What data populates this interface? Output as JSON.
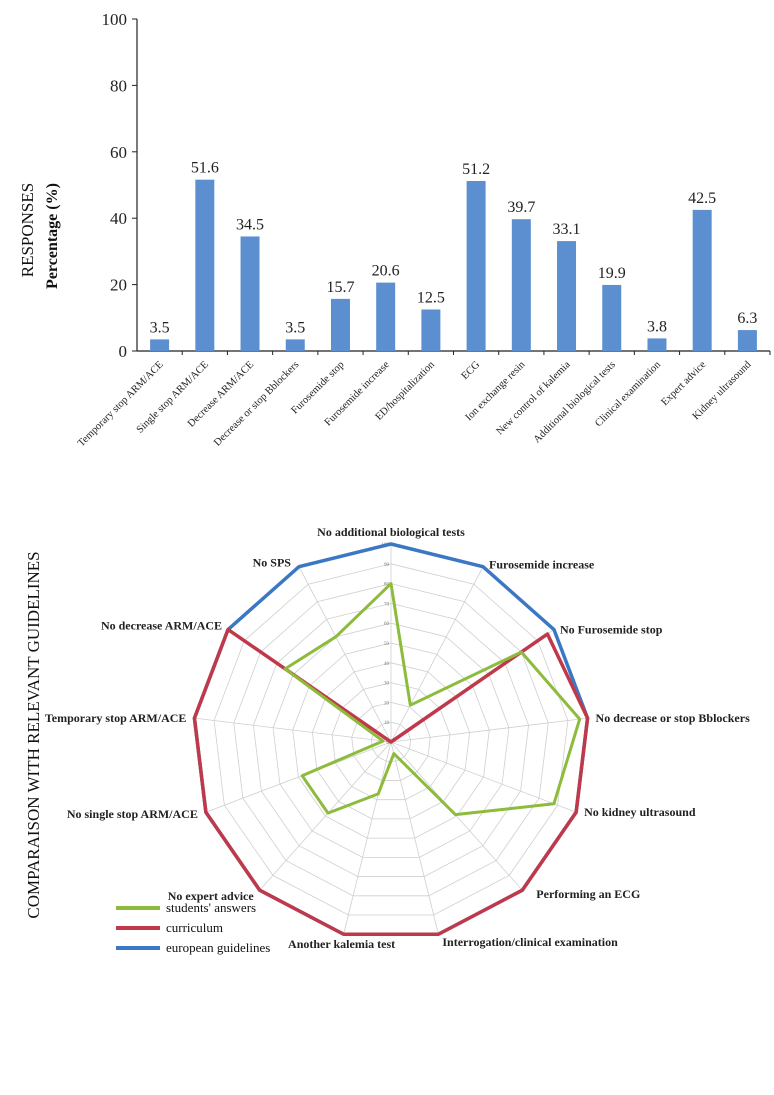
{
  "panels": {
    "bar_section_label": "RESPONSES",
    "radar_section_label": "COMPARAISON WITH RELEVANT GUIDELINES"
  },
  "colors": {
    "bar": "#5b8fd0",
    "students": "#8dbb3c",
    "curriculum": "#c0394b",
    "european": "#3a78c4",
    "grid": "#cfcfcf"
  },
  "chart_data": [
    {
      "type": "bar",
      "title": "",
      "xlabel": "",
      "ylabel": "Percentage (%)",
      "ylim": [
        0,
        100
      ],
      "yticks": [
        0,
        20,
        40,
        60,
        80,
        100
      ],
      "grid": false,
      "categories": [
        "Temporary stop ARM/ACE",
        "Single stop ARM/ACE",
        "Decrease ARM/ACE",
        "Decrease or stop Bblockers",
        "Furosemide stop",
        "Furosemide increase",
        "ED/hospitalization",
        "ECG",
        "Ion exchange resin",
        "New control of kalemia",
        "Additional biological tests",
        "Clinical examination",
        "Expert advice",
        "Kidney ultrasound"
      ],
      "values": [
        3.5,
        51.6,
        34.5,
        3.5,
        15.7,
        20.6,
        12.5,
        51.2,
        39.7,
        33.1,
        19.9,
        3.8,
        42.5,
        6.3
      ],
      "data_labels": [
        "3.5",
        "51.6",
        "34.5",
        "3.5",
        "15.7",
        "20.6",
        "12.5",
        "51.2",
        "39.7",
        "33.1",
        "19.9",
        "3.8",
        "42.5",
        "6.3"
      ]
    },
    {
      "type": "radar",
      "title": "",
      "rlim": [
        0,
        100
      ],
      "rticks": [
        0,
        10,
        20,
        30,
        40,
        50,
        60,
        70,
        80,
        90,
        100
      ],
      "grid": true,
      "legend_position": "bottom-left",
      "axes": [
        "No additional biological tests",
        "Furosemide increase",
        "No Furosemide stop",
        "No decrease or stop Bblockers",
        "No kidney ultrasound",
        "Performing an ECG",
        "Interrogation/clinical examination",
        "Another kalemia test",
        "No expert advice",
        "No single stop ARM/ACE",
        "Temporary stop ARM/ACE",
        "No decrease ARM/ACE",
        "No SPS"
      ],
      "axis_labels_display": [
        "No additional biological tests",
        "Furosemide increase",
        "No Furosemide stop",
        "No decrease or stop Bblockers",
        "No kidney ultrasound",
        "Performing an ECG",
        "Interrogation/clinical examination",
        "Another kalemia test",
        "No expert advice",
        "No single stop ARM/ACE",
        "Temporary stop ARM/ACE",
        "No decrease ARM/ACE",
        "No SPS"
      ],
      "series": [
        {
          "name": "students' answers",
          "values": [
            80,
            21,
            80,
            96,
            88,
            49,
            6,
            27,
            48,
            48,
            4,
            65,
            60
          ]
        },
        {
          "name": "curriculum",
          "values": [
            0,
            0,
            96,
            100,
            100,
            100,
            100,
            100,
            100,
            100,
            100,
            100,
            0
          ]
        },
        {
          "name": "european guidelines",
          "values": [
            100,
            100,
            100,
            100,
            100,
            100,
            100,
            100,
            100,
            100,
            100,
            100,
            100
          ]
        }
      ]
    }
  ]
}
